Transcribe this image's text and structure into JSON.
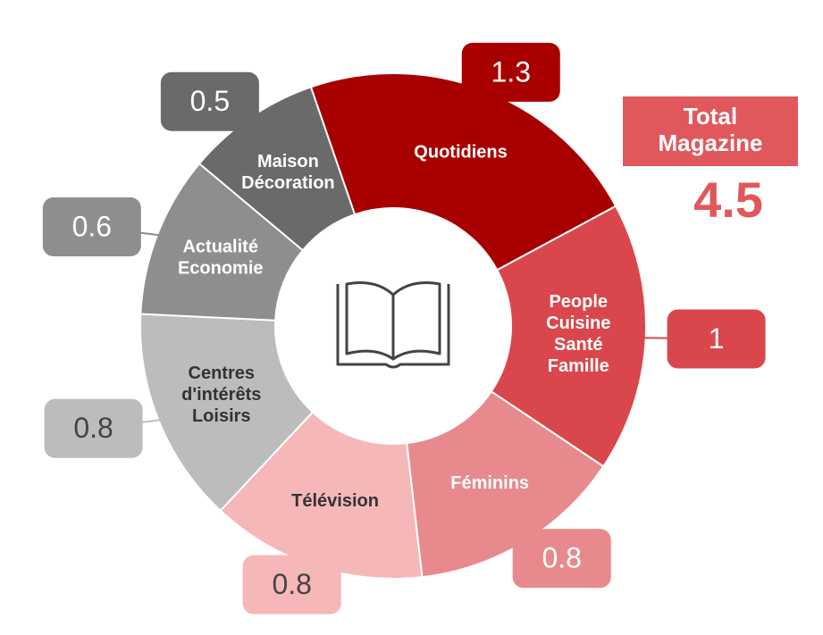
{
  "chart_data": {
    "type": "donut",
    "categories": [
      "Quotidiens",
      "People Cuisine Santé Famille",
      "Féminins",
      "Télévision",
      "Centres d'intérêts Loisirs",
      "Actualité Economie",
      "Maison Décoration"
    ],
    "values": [
      1.3,
      1.0,
      0.8,
      0.8,
      0.8,
      0.6,
      0.5
    ],
    "colors": [
      "#a80000",
      "#d9474c",
      "#e88a8d",
      "#f6b7b9",
      "#bcbcbc",
      "#8e8e8e",
      "#6a6a6a"
    ],
    "total_label": "Total Magazine",
    "total_value": 4.5
  }
}
